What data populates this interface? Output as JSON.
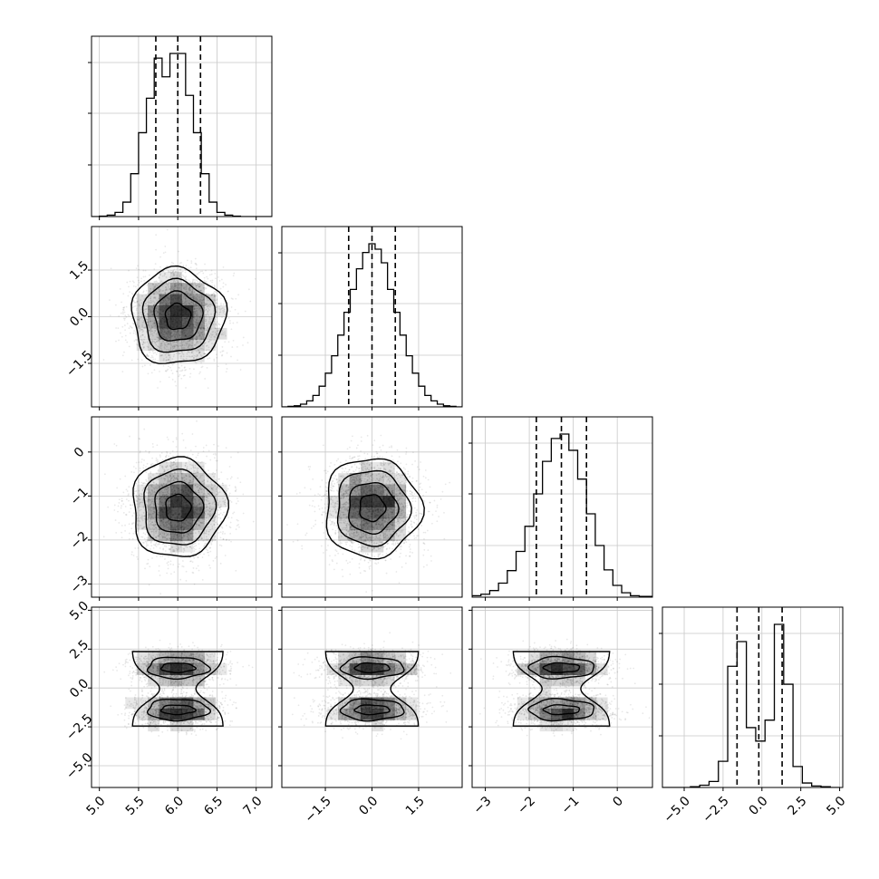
{
  "chart_data": {
    "type": "corner",
    "parameters": [
      {
        "range": [
          4.9,
          7.2
        ],
        "ticks": [
          5.0,
          5.5,
          6.0,
          6.5,
          7.0
        ],
        "tick_labels": [
          "5.0",
          "5.5",
          "6.0",
          "6.5",
          "7.0"
        ],
        "quantiles": [
          5.72,
          6.0,
          6.29
        ],
        "marginal_type": "gauss",
        "center": 6.0,
        "sigma": 0.29
      },
      {
        "range": [
          -2.9,
          2.9
        ],
        "ticks": [
          -1.5,
          0.0,
          1.5
        ],
        "tick_labels": [
          "−1.5",
          "0.0",
          "1.5"
        ],
        "quantiles": [
          -0.75,
          0.0,
          0.75
        ],
        "marginal_type": "gauss",
        "center": 0.0,
        "sigma": 0.75
      },
      {
        "range": [
          -3.3,
          0.8
        ],
        "ticks": [
          -3,
          -2,
          -1,
          0
        ],
        "tick_labels": [
          "−3",
          "−2",
          "−1",
          "0"
        ],
        "quantiles": [
          -1.84,
          -1.27,
          -0.7
        ],
        "marginal_type": "gauss",
        "center": -1.27,
        "sigma": 0.55
      },
      {
        "range": [
          -6.4,
          5.2
        ],
        "ticks": [
          -5.0,
          -2.5,
          0.0,
          2.5,
          5.0
        ],
        "tick_labels": [
          "−5.0",
          "−2.5",
          "0.0",
          "2.5",
          "5.0"
        ],
        "quantiles": [
          -1.6,
          -0.2,
          1.3
        ],
        "marginal_type": "bimodal",
        "modes": [
          -1.4,
          1.3
        ],
        "sigma": 0.55
      }
    ],
    "marginal_histograms": [
      {
        "param": 0,
        "bin_edges": [
          4.9,
          5.0,
          5.1,
          5.2,
          5.3,
          5.4,
          5.5,
          5.6,
          5.7,
          5.8,
          5.9,
          6.0,
          6.1,
          6.2,
          6.3,
          6.4,
          6.5,
          6.6,
          6.7,
          6.8,
          6.9,
          7.0,
          7.1,
          7.2
        ],
        "counts": [
          0,
          1,
          3,
          9,
          31,
          92,
          180,
          254,
          340,
          300,
          350,
          350,
          260,
          180,
          92,
          31,
          9,
          3,
          1,
          0,
          0,
          0,
          0
        ]
      },
      {
        "param": 1,
        "bin_edges": [
          -2.9,
          -2.7,
          -2.5,
          -2.3,
          -2.1,
          -1.9,
          -1.7,
          -1.5,
          -1.3,
          -1.1,
          -0.9,
          -0.7,
          -0.5,
          -0.3,
          -0.1,
          0.1,
          0.3,
          0.5,
          0.7,
          0.9,
          1.1,
          1.3,
          1.5,
          1.7,
          1.9,
          2.1,
          2.3,
          2.5,
          2.7,
          2.9
        ],
        "counts": [
          0,
          1,
          2,
          5,
          11,
          21,
          38,
          62,
          94,
          132,
          174,
          216,
          254,
          284,
          300,
          290,
          265,
          216,
          174,
          132,
          94,
          62,
          38,
          21,
          11,
          5,
          2,
          1,
          0
        ]
      },
      {
        "param": 2,
        "bin_edges": [
          -3.3,
          -3.1,
          -2.9,
          -2.7,
          -2.5,
          -2.3,
          -2.1,
          -1.9,
          -1.7,
          -1.5,
          -1.3,
          -1.1,
          -0.9,
          -0.7,
          -0.5,
          -0.3,
          -0.1,
          0.1,
          0.3,
          0.5,
          0.8
        ],
        "counts": [
          2,
          4,
          9,
          19,
          36,
          62,
          96,
          140,
          184,
          215,
          221,
          199,
          160,
          113,
          70,
          37,
          16,
          6,
          2,
          1
        ]
      },
      {
        "param": 3,
        "bin_edges": [
          -6.4,
          -5.8,
          -5.2,
          -4.6,
          -4.0,
          -3.4,
          -2.8,
          -2.2,
          -1.6,
          -1.0,
          -0.4,
          0.2,
          0.8,
          1.4,
          2.0,
          2.6,
          3.2,
          3.8,
          4.4,
          5.0
        ],
        "counts": [
          0,
          0,
          0,
          1,
          3,
          8,
          35,
          162,
          195,
          80,
          62,
          90,
          218,
          138,
          28,
          6,
          2,
          1,
          0
        ]
      }
    ],
    "pairs": [
      {
        "x_param": 0,
        "y_param": 1
      },
      {
        "x_param": 0,
        "y_param": 2
      },
      {
        "x_param": 1,
        "y_param": 2
      },
      {
        "x_param": 0,
        "y_param": 3
      },
      {
        "x_param": 1,
        "y_param": 3
      },
      {
        "x_param": 2,
        "y_param": 3
      }
    ],
    "grid": true,
    "tick_rotation_deg": 45
  }
}
